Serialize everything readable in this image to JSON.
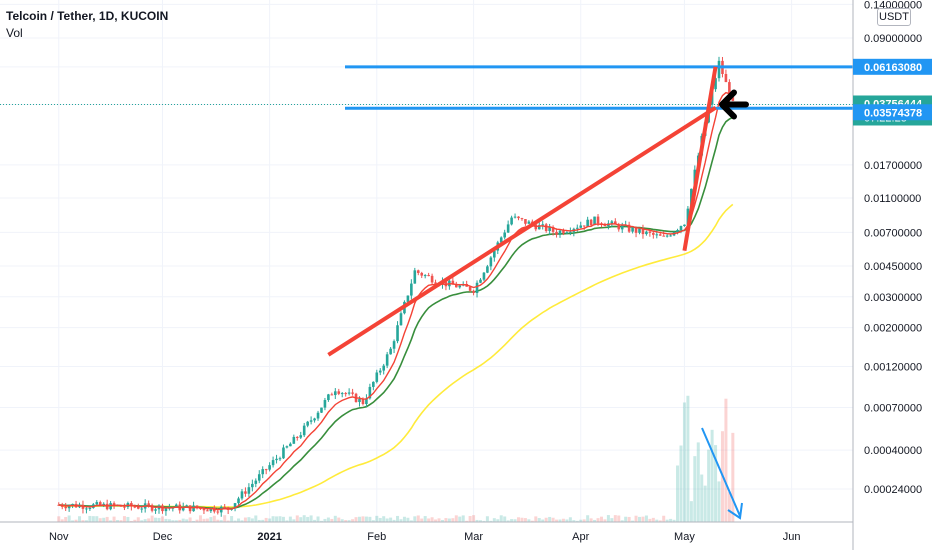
{
  "header": {
    "symbol": "Telcoin / Tether, 1D, KUCOIN",
    "volume_label": "Vol",
    "currency": "USDT"
  },
  "chart_data": {
    "type": "candlestick",
    "title": "Telcoin / Tether, 1D, KUCOIN",
    "y_scale": "log",
    "y_ticks": [
      "0.14000000",
      "0.09000000",
      "0.06163080",
      "0.03756444",
      "0.01700000",
      "0.01100000",
      "0.00700000",
      "0.00450000",
      "0.00300000",
      "0.00200000",
      "0.00120000",
      "0.00070000",
      "0.00040000",
      "0.00024000"
    ],
    "x_ticks": [
      "Nov",
      "Dec",
      "2021",
      "Feb",
      "Mar",
      "Apr",
      "May",
      "Jun"
    ],
    "price_labels": [
      {
        "value": "0.06163080",
        "color": "#2196f3"
      },
      {
        "value": "0.03756444",
        "color": "#26a69a",
        "countdown": "07:22:23"
      },
      {
        "value": "0.03574378",
        "color": "#2196f3"
      }
    ],
    "key_prices": [
      {
        "date": "2020-11-01",
        "price": 0.000195
      },
      {
        "date": "2020-12-20",
        "price": 0.000185
      },
      {
        "date": "2021-01-10",
        "price": 0.0005
      },
      {
        "date": "2021-01-20",
        "price": 0.0009
      },
      {
        "date": "2021-01-28",
        "price": 0.00075
      },
      {
        "date": "2021-02-05",
        "price": 0.0015
      },
      {
        "date": "2021-02-12",
        "price": 0.0042
      },
      {
        "date": "2021-02-20",
        "price": 0.0036
      },
      {
        "date": "2021-03-01",
        "price": 0.0033
      },
      {
        "date": "2021-03-12",
        "price": 0.0085
      },
      {
        "date": "2021-03-25",
        "price": 0.007
      },
      {
        "date": "2021-04-05",
        "price": 0.0082
      },
      {
        "date": "2021-04-25",
        "price": 0.0065
      },
      {
        "date": "2021-05-01",
        "price": 0.008
      },
      {
        "date": "2021-05-08",
        "price": 0.037
      },
      {
        "date": "2021-05-11",
        "price": 0.065
      },
      {
        "date": "2021-05-15",
        "price": 0.03756
      }
    ],
    "trendlines": [
      {
        "color": "#f44336",
        "from": {
          "date": "2021-01-18",
          "price": 0.0014
        },
        "to": {
          "date": "2021-05-10",
          "price": 0.036
        }
      },
      {
        "color": "#f44336",
        "from": {
          "date": "2021-05-01",
          "price": 0.0055
        },
        "to": {
          "date": "2021-05-10",
          "price": 0.06163
        }
      }
    ],
    "horizontal_levels": [
      {
        "price": 0.0616308,
        "color": "#2196f3"
      },
      {
        "price": 0.03574378,
        "color": "#2196f3"
      }
    ],
    "moving_averages": [
      {
        "color": "#f44336"
      },
      {
        "color": "#388e3c"
      },
      {
        "color": "#ffeb3b"
      }
    ],
    "annotations": [
      {
        "type": "arrow",
        "direction": "left",
        "color": "#000000",
        "at_price": 0.03756
      },
      {
        "type": "arrow",
        "direction": "down-right",
        "color": "#2196f3",
        "over": "volume"
      }
    ],
    "grid": true
  }
}
